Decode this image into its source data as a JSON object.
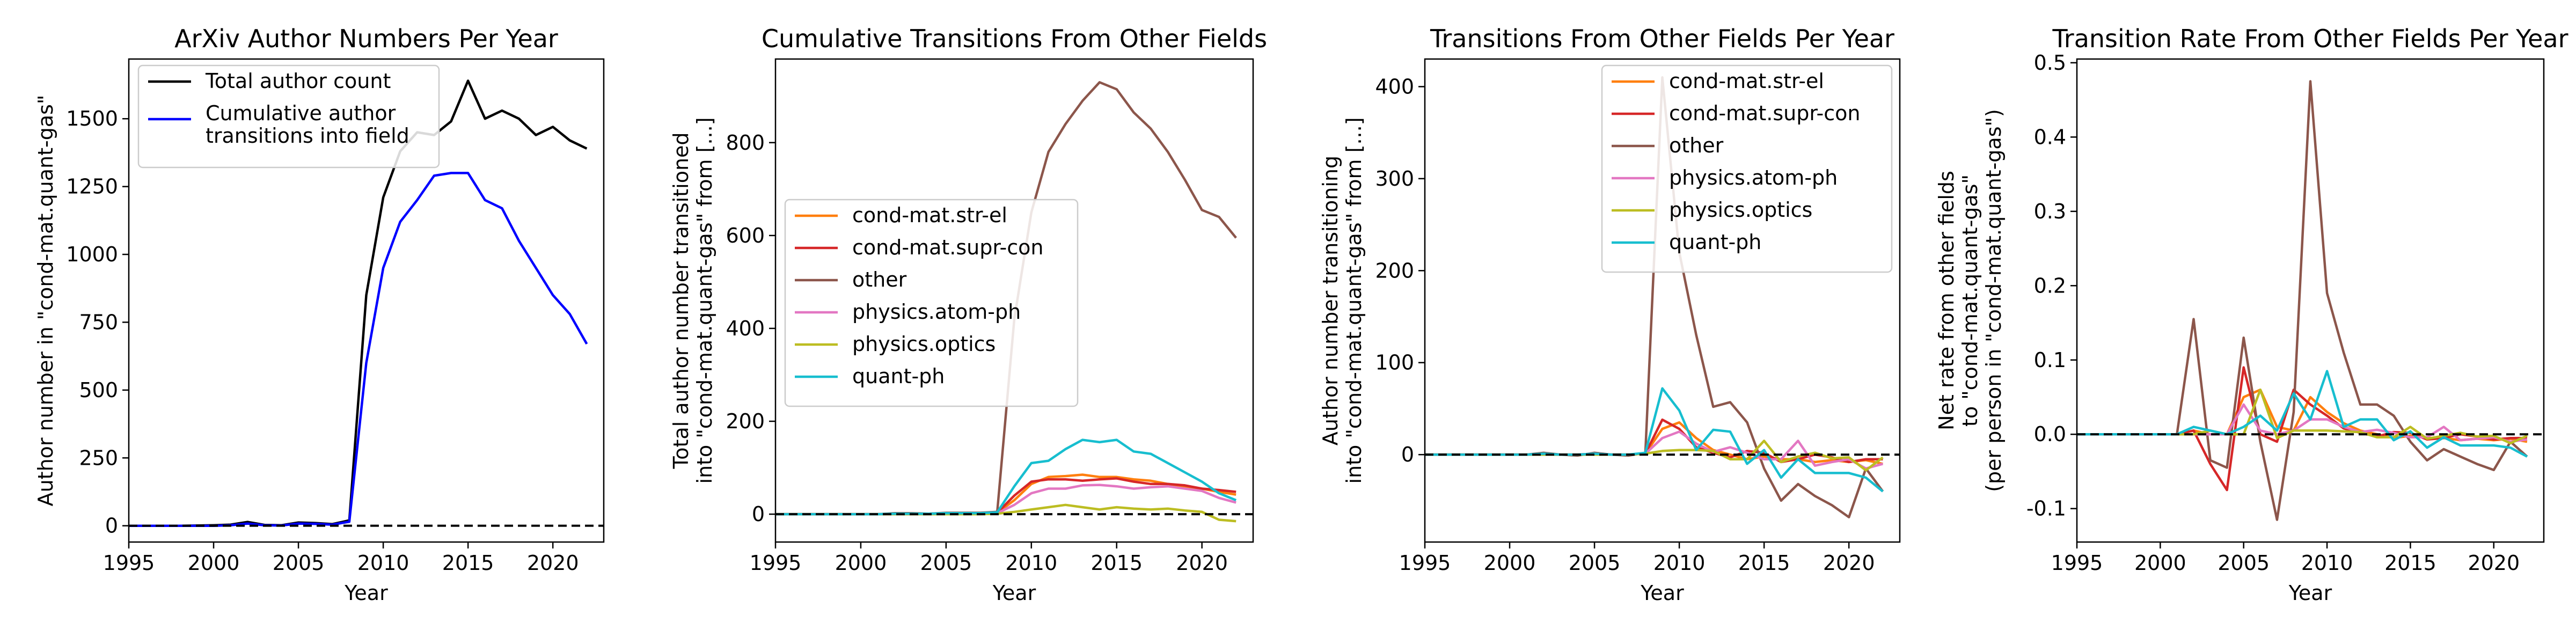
{
  "figure": {
    "colors": {
      "total": "#000000",
      "cumulative": "#0000ff",
      "cond-mat.str-el": "#ff7f0e",
      "cond-mat.supr-con": "#d62728",
      "other": "#8c564b",
      "physics.atom-ph": "#e377c2",
      "physics.optics": "#bcbd22",
      "quant-ph": "#17becf"
    }
  },
  "chart_data": [
    {
      "type": "line",
      "title": "ArXiv Author Numbers Per Year",
      "xlabel": "Year",
      "ylabel": "Author number in \"cond-mat.quant-gas\"",
      "xlim": [
        1995,
        2023
      ],
      "ylim": [
        -60,
        1720
      ],
      "xticks": [
        1995,
        2000,
        2005,
        2010,
        2015,
        2020
      ],
      "yticks": [
        0,
        250,
        500,
        750,
        1000,
        1250,
        1500
      ],
      "zero_line": true,
      "legend_position": "upper-left",
      "x": [
        1995,
        1996,
        1997,
        1998,
        1999,
        2000,
        2001,
        2002,
        2003,
        2004,
        2005,
        2006,
        2007,
        2008,
        2009,
        2010,
        2011,
        2012,
        2013,
        2014,
        2015,
        2016,
        2017,
        2018,
        2019,
        2020,
        2021,
        2022
      ],
      "series": [
        {
          "name": "Total author count",
          "color_key": "total",
          "values": [
            0,
            0,
            0,
            0,
            1,
            2,
            4,
            14,
            3,
            2,
            12,
            10,
            6,
            20,
            850,
            1210,
            1380,
            1450,
            1440,
            1490,
            1640,
            1500,
            1530,
            1500,
            1440,
            1470,
            1420,
            1390
          ]
        },
        {
          "name": "Cumulative author\ntransitions into field",
          "color_key": "cumulative",
          "values": [
            0,
            0,
            0,
            0,
            0,
            0,
            2,
            8,
            2,
            1,
            8,
            7,
            4,
            15,
            600,
            950,
            1120,
            1200,
            1290,
            1300,
            1300,
            1200,
            1170,
            1050,
            950,
            850,
            780,
            670
          ]
        }
      ]
    },
    {
      "type": "line",
      "title": "Cumulative Transitions From Other Fields",
      "xlabel": "Year",
      "ylabel": "Total author number transitioned\ninto \"cond-mat.quant-gas\" from [...]",
      "xlim": [
        1995,
        2023
      ],
      "ylim": [
        -60,
        980
      ],
      "xticks": [
        1995,
        2000,
        2005,
        2010,
        2015,
        2020
      ],
      "yticks": [
        0,
        200,
        400,
        600,
        800
      ],
      "zero_line": true,
      "legend_position": "center-left",
      "x": [
        1995,
        1996,
        1997,
        1998,
        1999,
        2000,
        2001,
        2002,
        2003,
        2004,
        2005,
        2006,
        2007,
        2008,
        2009,
        2010,
        2011,
        2012,
        2013,
        2014,
        2015,
        2016,
        2017,
        2018,
        2019,
        2020,
        2021,
        2022
      ],
      "series": [
        {
          "name": "cond-mat.str-el",
          "color_key": "cond-mat.str-el",
          "values": [
            0,
            0,
            0,
            0,
            0,
            0,
            0,
            1,
            1,
            1,
            2,
            2,
            2,
            3,
            30,
            65,
            80,
            82,
            85,
            80,
            80,
            75,
            72,
            65,
            60,
            55,
            48,
            42
          ]
        },
        {
          "name": "cond-mat.supr-con",
          "color_key": "cond-mat.supr-con",
          "values": [
            0,
            0,
            0,
            0,
            0,
            0,
            0,
            1,
            1,
            1,
            2,
            2,
            2,
            3,
            40,
            70,
            75,
            75,
            72,
            75,
            77,
            70,
            65,
            65,
            62,
            55,
            52,
            48
          ]
        },
        {
          "name": "other",
          "color_key": "other",
          "values": [
            0,
            0,
            0,
            0,
            0,
            0,
            0,
            2,
            2,
            1,
            3,
            3,
            3,
            5,
            420,
            650,
            780,
            840,
            890,
            930,
            915,
            865,
            830,
            780,
            720,
            655,
            640,
            595
          ]
        },
        {
          "name": "physics.atom-ph",
          "color_key": "physics.atom-ph",
          "values": [
            0,
            0,
            0,
            0,
            0,
            0,
            0,
            0,
            0,
            0,
            1,
            1,
            1,
            2,
            20,
            45,
            55,
            55,
            62,
            63,
            60,
            55,
            58,
            60,
            55,
            50,
            35,
            25
          ]
        },
        {
          "name": "physics.optics",
          "color_key": "physics.optics",
          "values": [
            0,
            0,
            0,
            0,
            0,
            0,
            0,
            0,
            0,
            0,
            0,
            0,
            0,
            1,
            5,
            10,
            15,
            20,
            15,
            10,
            15,
            12,
            10,
            12,
            8,
            5,
            -12,
            -15
          ]
        },
        {
          "name": "quant-ph",
          "color_key": "quant-ph",
          "values": [
            0,
            0,
            0,
            0,
            0,
            0,
            0,
            1,
            1,
            1,
            2,
            2,
            2,
            4,
            60,
            110,
            115,
            140,
            160,
            155,
            160,
            135,
            130,
            110,
            90,
            70,
            45,
            30
          ]
        }
      ]
    },
    {
      "type": "line",
      "title": "Transitions From Other Fields Per Year",
      "xlabel": "Year",
      "ylabel": "Author number transitioning\ninto \"cond-mat.quant-gas\" from [...]",
      "xlim": [
        1995,
        2023
      ],
      "ylim": [
        -95,
        430
      ],
      "xticks": [
        1995,
        2000,
        2005,
        2010,
        2015,
        2020
      ],
      "yticks": [
        0,
        100,
        200,
        300,
        400
      ],
      "zero_line": true,
      "legend_position": "upper-right",
      "x": [
        1995,
        1996,
        1997,
        1998,
        1999,
        2000,
        2001,
        2002,
        2003,
        2004,
        2005,
        2006,
        2007,
        2008,
        2009,
        2010,
        2011,
        2012,
        2013,
        2014,
        2015,
        2016,
        2017,
        2018,
        2019,
        2020,
        2021,
        2022
      ],
      "series": [
        {
          "name": "cond-mat.str-el",
          "color_key": "cond-mat.str-el",
          "values": [
            0,
            0,
            0,
            0,
            0,
            0,
            0,
            1,
            0,
            0,
            1,
            0,
            0,
            1,
            28,
            35,
            18,
            5,
            0,
            -5,
            -2,
            -5,
            -5,
            -8,
            -6,
            -8,
            -6,
            -10
          ]
        },
        {
          "name": "cond-mat.supr-con",
          "color_key": "cond-mat.supr-con",
          "values": [
            0,
            0,
            0,
            0,
            0,
            0,
            0,
            1,
            0,
            0,
            1,
            0,
            0,
            1,
            38,
            28,
            8,
            2,
            -3,
            4,
            2,
            -8,
            -5,
            0,
            -3,
            -8,
            -5,
            -5
          ]
        },
        {
          "name": "other",
          "color_key": "other",
          "values": [
            0,
            0,
            0,
            0,
            0,
            0,
            0,
            2,
            0,
            -1,
            2,
            0,
            -1,
            2,
            410,
            220,
            130,
            52,
            57,
            35,
            -15,
            -50,
            -32,
            -45,
            -55,
            -68,
            -15,
            -40
          ]
        },
        {
          "name": "physics.atom-ph",
          "color_key": "physics.atom-ph",
          "values": [
            0,
            0,
            0,
            0,
            0,
            0,
            0,
            0,
            0,
            0,
            1,
            0,
            0,
            1,
            18,
            25,
            12,
            3,
            8,
            2,
            -5,
            -5,
            15,
            -12,
            -8,
            -5,
            -15,
            -10
          ]
        },
        {
          "name": "physics.optics",
          "color_key": "physics.optics",
          "values": [
            0,
            0,
            0,
            0,
            0,
            0,
            0,
            0,
            0,
            0,
            0,
            0,
            0,
            1,
            4,
            5,
            5,
            4,
            -5,
            -5,
            15,
            -8,
            -2,
            2,
            -4,
            -3,
            -17,
            -3
          ]
        },
        {
          "name": "quant-ph",
          "color_key": "quant-ph",
          "values": [
            0,
            0,
            0,
            0,
            0,
            0,
            0,
            1,
            0,
            0,
            1,
            0,
            0,
            2,
            72,
            48,
            5,
            27,
            25,
            -10,
            5,
            -25,
            -5,
            -20,
            -20,
            -20,
            -25,
            -40
          ]
        }
      ]
    },
    {
      "type": "line",
      "title": "Transition Rate From Other Fields Per Year",
      "xlabel": "Year",
      "ylabel": "Net rate from other fields\nto \"cond-mat.quant-gas\"\n(per person in \"cond-mat.quant-gas\")",
      "xlim": [
        1995,
        2023
      ],
      "ylim": [
        -0.145,
        0.505
      ],
      "xticks": [
        1995,
        2000,
        2005,
        2010,
        2015,
        2020
      ],
      "yticks": [
        -0.1,
        0.0,
        0.1,
        0.2,
        0.3,
        0.4,
        0.5
      ],
      "zero_line": true,
      "x": [
        1995,
        1996,
        1997,
        1998,
        1999,
        2000,
        2001,
        2002,
        2003,
        2004,
        2005,
        2006,
        2007,
        2008,
        2009,
        2010,
        2011,
        2012,
        2013,
        2014,
        2015,
        2016,
        2017,
        2018,
        2019,
        2020,
        2021,
        2022
      ],
      "series": [
        {
          "name": "cond-mat.str-el",
          "color_key": "cond-mat.str-el",
          "values": [
            0,
            0,
            0,
            0,
            0,
            0,
            0,
            0.005,
            0,
            0,
            0.05,
            0.06,
            0.01,
            0.005,
            0.05,
            0.03,
            0.015,
            0.005,
            0,
            -0.005,
            -0.002,
            -0.005,
            -0.005,
            -0.008,
            -0.006,
            -0.008,
            -0.006,
            -0.01
          ]
        },
        {
          "name": "cond-mat.supr-con",
          "color_key": "cond-mat.supr-con",
          "values": [
            0,
            0,
            0,
            0,
            0,
            0,
            0,
            0.005,
            -0.04,
            -0.075,
            0.09,
            0.0,
            -0.01,
            0.06,
            0.04,
            0.025,
            0.008,
            0.002,
            -0.003,
            0.003,
            0.002,
            -0.007,
            -0.005,
            0,
            -0.003,
            -0.007,
            -0.005,
            -0.005
          ]
        },
        {
          "name": "other",
          "color_key": "other",
          "values": [
            0,
            0,
            0,
            0,
            0,
            0,
            0,
            0.155,
            -0.035,
            -0.045,
            0.13,
            -0.01,
            -0.115,
            0.03,
            0.475,
            0.19,
            0.11,
            0.04,
            0.04,
            0.025,
            -0.01,
            -0.035,
            -0.02,
            -0.03,
            -0.04,
            -0.048,
            -0.01,
            -0.03
          ]
        },
        {
          "name": "physics.atom-ph",
          "color_key": "physics.atom-ph",
          "values": [
            0,
            0,
            0,
            0,
            0,
            0,
            0,
            0,
            0,
            0,
            0.04,
            0.005,
            0,
            0.005,
            0.02,
            0.02,
            0.01,
            0.003,
            0.006,
            0.002,
            -0.004,
            -0.004,
            0.01,
            -0.008,
            -0.006,
            -0.004,
            -0.01,
            -0.007
          ]
        },
        {
          "name": "physics.optics",
          "color_key": "physics.optics",
          "values": [
            0,
            0,
            0,
            0,
            0,
            0,
            0,
            0,
            0.005,
            0,
            0.0,
            0.06,
            -0.005,
            0.005,
            0.005,
            0.005,
            0.004,
            0.003,
            -0.004,
            -0.004,
            0.01,
            -0.006,
            -0.002,
            0.002,
            -0.003,
            -0.002,
            -0.012,
            -0.002
          ]
        },
        {
          "name": "quant-ph",
          "color_key": "quant-ph",
          "values": [
            0,
            0,
            0,
            0,
            0,
            0,
            0,
            0.01,
            0.005,
            0,
            0.01,
            0.025,
            0.005,
            0.055,
            0.02,
            0.085,
            0.01,
            0.02,
            0.02,
            -0.008,
            0.004,
            -0.018,
            -0.004,
            -0.015,
            -0.015,
            -0.015,
            -0.018,
            -0.03
          ]
        }
      ]
    }
  ]
}
